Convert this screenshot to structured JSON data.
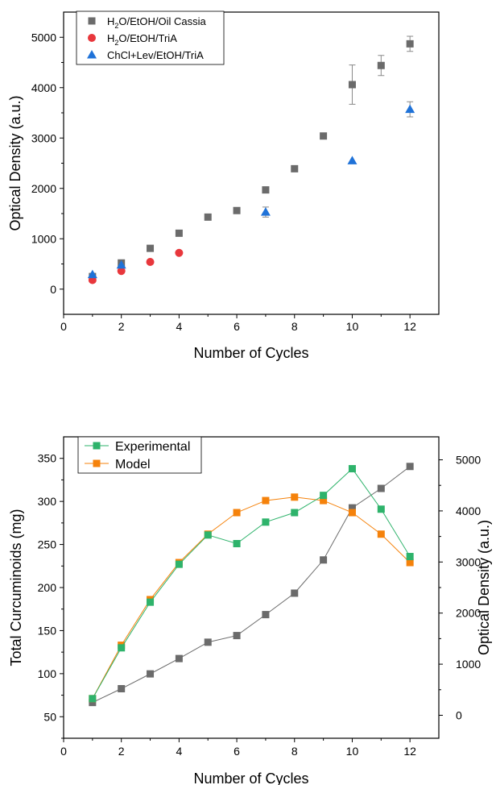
{
  "colors": {
    "oil_cassia": "#6b6b6b",
    "tria": "#e8373c",
    "chcl": "#1f72d8",
    "experimental": "#2eb36b",
    "model": "#f5820b",
    "od_series": "#6b6b6b"
  },
  "chart_data": [
    {
      "type": "scatter",
      "xlabel": "Number of Cycles",
      "ylabel": "Optical Density (a.u.)",
      "xlim": [
        0,
        13
      ],
      "ylim": [
        -500,
        5500
      ],
      "xticks": [
        "0",
        "2",
        "4",
        "6",
        "8",
        "10",
        "12"
      ],
      "yticks": [
        "0",
        "1000",
        "2000",
        "3000",
        "4000",
        "5000"
      ],
      "legend_position": "top-left",
      "series": [
        {
          "name": "H2O/EtOH/Oil Cassia",
          "name_parts": [
            "H",
            "2",
            "O/EtOH/Oil Cassia"
          ],
          "marker": "square",
          "x": [
            1,
            2,
            3,
            4,
            5,
            6,
            7,
            8,
            9,
            10,
            11,
            12
          ],
          "y": [
            250,
            520,
            810,
            1110,
            1430,
            1560,
            1970,
            2390,
            3040,
            4060,
            4440,
            4870
          ],
          "err": [
            0,
            0,
            0,
            0,
            0,
            0,
            0,
            0,
            0,
            390,
            200,
            150
          ]
        },
        {
          "name": "H2O/EtOH/TriA",
          "name_parts": [
            "H",
            "2",
            "O/EtOH/TriA"
          ],
          "marker": "circle",
          "x": [
            1,
            2,
            3,
            4
          ],
          "y": [
            180,
            360,
            540,
            720
          ],
          "err": [
            0,
            0,
            0,
            0
          ]
        },
        {
          "name": "ChCl+Lev/EtOH/TriA",
          "name_parts": [
            "ChCl+Lev/EtOH/TriA",
            "",
            ""
          ],
          "marker": "triangle",
          "x": [
            1,
            2,
            7,
            10,
            12
          ],
          "y": [
            290,
            480,
            1530,
            2550,
            3570
          ],
          "err": [
            0,
            0,
            100,
            0,
            150
          ]
        }
      ]
    },
    {
      "type": "line",
      "xlabel": "Number of Cycles",
      "ylabel": "Total Curcuminoids (mg)",
      "y2label": "Optical Density (a.u.)",
      "xlim": [
        0,
        13
      ],
      "ylim": [
        25,
        375
      ],
      "y2lim": [
        -450,
        5450
      ],
      "xticks": [
        "0",
        "2",
        "4",
        "6",
        "8",
        "10",
        "12"
      ],
      "yticks": [
        "50",
        "100",
        "150",
        "200",
        "250",
        "300",
        "350"
      ],
      "y2ticks": [
        "0",
        "1000",
        "2000",
        "3000",
        "4000",
        "5000"
      ],
      "legend_position": "top-left",
      "series": [
        {
          "name": "Experimental",
          "axis": "left",
          "x": [
            1,
            2,
            3,
            4,
            5,
            6,
            7,
            8,
            9,
            10,
            11,
            12
          ],
          "y": [
            71,
            130,
            183,
            227,
            261,
            251,
            276,
            287,
            307,
            338,
            291,
            236
          ]
        },
        {
          "name": "Model",
          "axis": "left",
          "x": [
            1,
            2,
            3,
            4,
            5,
            6,
            7,
            8,
            9,
            10,
            11,
            12
          ],
          "y": [
            71,
            133,
            186,
            229,
            262,
            287,
            301,
            305,
            301,
            287,
            262,
            229
          ]
        },
        {
          "axis": "right",
          "x": [
            1,
            2,
            3,
            4,
            5,
            6,
            7,
            8,
            9,
            10,
            11,
            12
          ],
          "y": [
            250,
            520,
            810,
            1110,
            1430,
            1560,
            1970,
            2390,
            3040,
            4060,
            4440,
            4870
          ]
        }
      ]
    }
  ]
}
